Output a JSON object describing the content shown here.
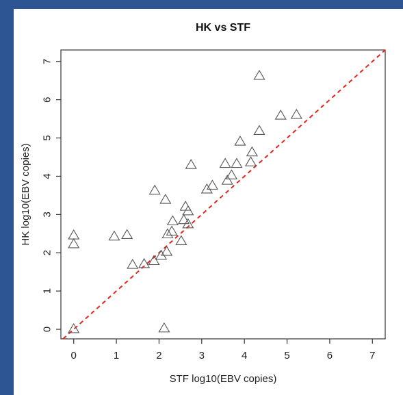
{
  "colors": {
    "frame": "#2d5594",
    "panel": "#ffffff",
    "marker": "#555555",
    "reference_line": "#e8231b",
    "axis": "#333333"
  },
  "chart_data": {
    "type": "scatter",
    "title": "HK vs STF",
    "xlabel": "STF  log10(EBV copies)",
    "ylabel": "HK  log10(EBV copies)",
    "xlim": [
      -0.3,
      7.3
    ],
    "ylim": [
      -0.25,
      7.3
    ],
    "xticks": [
      0,
      1,
      2,
      3,
      4,
      5,
      6,
      7
    ],
    "yticks": [
      0,
      1,
      2,
      3,
      4,
      5,
      6,
      7
    ],
    "xtick_labels": [
      "0",
      "1",
      "2",
      "3",
      "4",
      "5",
      "6",
      "7"
    ],
    "ytick_labels": [
      "0",
      "1",
      "2",
      "3",
      "4",
      "5",
      "6",
      "7"
    ],
    "grid": false,
    "legend": "none",
    "marker": "open-triangle",
    "reference_line": {
      "type": "y = x",
      "style": "dashed",
      "color": "#e8231b"
    },
    "points": [
      {
        "x": 0.0,
        "y": 2.45
      },
      {
        "x": 0.0,
        "y": 2.22
      },
      {
        "x": 0.0,
        "y": 0.0
      },
      {
        "x": 0.95,
        "y": 2.42
      },
      {
        "x": 1.25,
        "y": 2.46
      },
      {
        "x": 1.38,
        "y": 1.68
      },
      {
        "x": 1.65,
        "y": 1.7
      },
      {
        "x": 1.88,
        "y": 1.78
      },
      {
        "x": 1.9,
        "y": 3.62
      },
      {
        "x": 2.05,
        "y": 1.92
      },
      {
        "x": 2.12,
        "y": 0.02
      },
      {
        "x": 2.15,
        "y": 3.38
      },
      {
        "x": 2.18,
        "y": 2.02
      },
      {
        "x": 2.2,
        "y": 2.48
      },
      {
        "x": 2.3,
        "y": 2.55
      },
      {
        "x": 2.32,
        "y": 2.82
      },
      {
        "x": 2.52,
        "y": 2.3
      },
      {
        "x": 2.58,
        "y": 2.85
      },
      {
        "x": 2.62,
        "y": 3.2
      },
      {
        "x": 2.68,
        "y": 3.08
      },
      {
        "x": 2.68,
        "y": 2.74
      },
      {
        "x": 2.75,
        "y": 4.29
      },
      {
        "x": 3.12,
        "y": 3.65
      },
      {
        "x": 3.25,
        "y": 3.75
      },
      {
        "x": 3.55,
        "y": 4.32
      },
      {
        "x": 3.6,
        "y": 3.88
      },
      {
        "x": 3.7,
        "y": 4.02
      },
      {
        "x": 3.82,
        "y": 4.32
      },
      {
        "x": 3.9,
        "y": 4.9
      },
      {
        "x": 4.15,
        "y": 4.36
      },
      {
        "x": 4.18,
        "y": 4.62
      },
      {
        "x": 4.35,
        "y": 5.18
      },
      {
        "x": 4.35,
        "y": 6.62
      },
      {
        "x": 4.85,
        "y": 5.58
      },
      {
        "x": 5.22,
        "y": 5.6
      }
    ]
  }
}
